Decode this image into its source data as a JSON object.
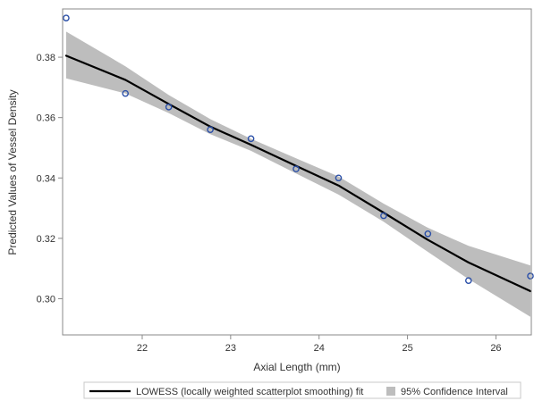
{
  "chart_data": {
    "type": "scatter",
    "xlabel": "Axial Length (mm)",
    "ylabel": "Predicted Values of Vessel Density",
    "xlim": [
      21.1,
      26.4
    ],
    "ylim": [
      0.288,
      0.396
    ],
    "xticks": [
      22,
      23,
      24,
      25,
      26
    ],
    "yticks": [
      0.3,
      0.32,
      0.34,
      0.36,
      0.38
    ],
    "ytick_labels": [
      "0.30",
      "0.32",
      "0.34",
      "0.36",
      "0.38"
    ],
    "grid": false,
    "legend_position": "bottom",
    "points": {
      "x": [
        21.14,
        21.81,
        22.3,
        22.77,
        23.23,
        23.74,
        24.22,
        24.73,
        25.23,
        25.69,
        26.39
      ],
      "y": [
        0.393,
        0.368,
        0.3635,
        0.356,
        0.353,
        0.343,
        0.34,
        0.3275,
        0.3215,
        0.306,
        0.3075
      ],
      "marker_color": "#2a4fa8"
    },
    "series": [
      {
        "name": "LOWESS (locally weighted scatterplot smoothing) fit",
        "kind": "line",
        "color": "#000000",
        "x": [
          21.14,
          21.81,
          22.3,
          22.77,
          23.23,
          23.74,
          24.22,
          24.73,
          25.23,
          25.69,
          26.39
        ],
        "y": [
          0.3805,
          0.3725,
          0.3645,
          0.357,
          0.351,
          0.344,
          0.3375,
          0.3285,
          0.3195,
          0.312,
          0.3025
        ]
      },
      {
        "name": "95% Confidence Interval",
        "kind": "band",
        "color": "#bdbdbd",
        "x": [
          21.14,
          21.81,
          22.3,
          22.77,
          23.23,
          23.74,
          24.22,
          24.73,
          25.23,
          25.69,
          26.39
        ],
        "lower": [
          0.373,
          0.368,
          0.3615,
          0.3545,
          0.349,
          0.3415,
          0.3345,
          0.3255,
          0.3155,
          0.3065,
          0.294
        ],
        "upper": [
          0.3885,
          0.377,
          0.3675,
          0.3595,
          0.353,
          0.3465,
          0.3405,
          0.3315,
          0.3235,
          0.3175,
          0.311
        ]
      }
    ]
  }
}
